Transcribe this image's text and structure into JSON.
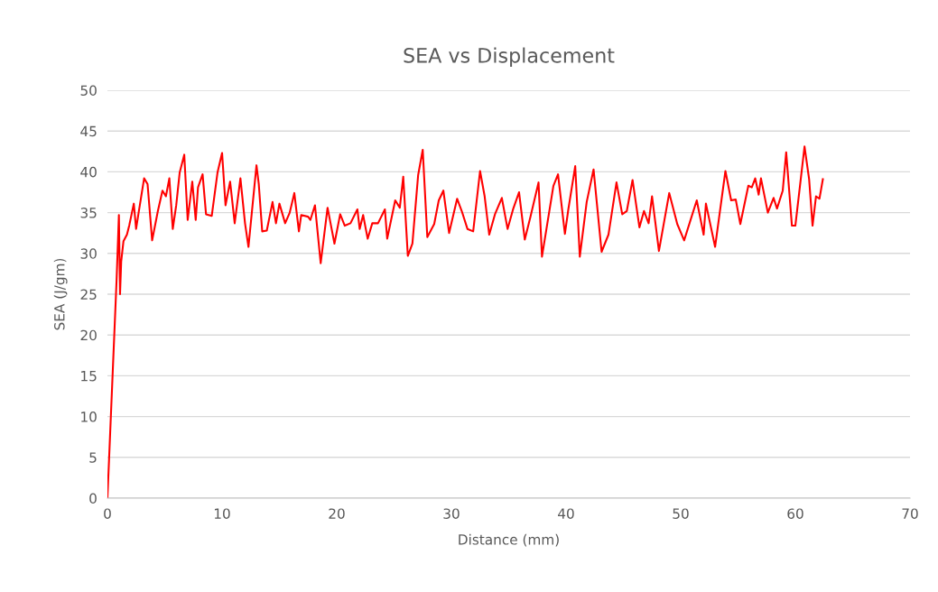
{
  "chart_data": {
    "type": "line",
    "title": "SEA vs Displacement",
    "xlabel": "Distance (mm)",
    "ylabel": "SEA (J/gm)",
    "xlim": [
      0,
      70
    ],
    "xticks": [
      0,
      10,
      20,
      30,
      40,
      50,
      60,
      70
    ],
    "ylim": [
      0,
      50
    ],
    "yticks": [
      0,
      5,
      10,
      15,
      20,
      25,
      30,
      35,
      40,
      45,
      50
    ],
    "grid": "y",
    "legend": false,
    "marker": "none",
    "line_style": "solid",
    "series": [
      {
        "color": "#ff0000",
        "x": [
          0,
          0.8,
          1.0,
          1.1,
          1.2,
          1.4,
          1.7,
          1.9,
          2.3,
          2.5,
          2.7,
          3.2,
          3.5,
          3.9,
          4.4,
          4.8,
          5.1,
          5.4,
          5.7,
          6.0,
          6.3,
          6.7,
          7.0,
          7.4,
          7.7,
          7.9,
          8.3,
          8.6,
          9.1,
          9.6,
          10.0,
          10.3,
          10.7,
          11.1,
          11.6,
          12.0,
          12.3,
          13.0,
          13.2,
          13.5,
          13.9,
          14.4,
          14.7,
          15.0,
          15.5,
          15.9,
          16.3,
          16.7,
          16.9,
          17.5,
          17.7,
          18.1,
          18.6,
          19.2,
          19.8,
          20.3,
          20.7,
          21.2,
          21.8,
          22.0,
          22.3,
          22.7,
          23.1,
          23.6,
          24.2,
          24.4,
          25.1,
          25.5,
          25.8,
          26.2,
          26.6,
          27.1,
          27.5,
          27.9,
          28.5,
          28.9,
          29.3,
          29.8,
          30.5,
          30.9,
          31.4,
          31.9,
          32.5,
          32.9,
          33.3,
          33.8,
          34.4,
          34.9,
          35.4,
          35.9,
          36.4,
          36.9,
          37.6,
          37.9,
          38.9,
          39.3,
          39.9,
          40.2,
          40.8,
          41.2,
          41.8,
          42.4,
          43.1,
          43.7,
          44.4,
          44.9,
          45.3,
          45.8,
          46.4,
          46.8,
          47.2,
          47.5,
          48.1,
          49.0,
          49.7,
          50.3,
          51.4,
          52.0,
          52.2,
          53.0,
          53.9,
          54.4,
          54.8,
          55.2,
          55.9,
          56.2,
          56.5,
          56.8,
          57.0,
          57.6,
          58.1,
          58.4,
          58.9,
          59.2,
          59.7,
          60.0,
          60.8,
          61.2,
          61.5,
          61.8,
          62.1,
          62.4
        ],
        "values": [
          0,
          26.8,
          34.7,
          25,
          29,
          31.5,
          32.3,
          33.4,
          36.1,
          33,
          34.8,
          39.2,
          38.5,
          31.6,
          35.2,
          37.7,
          37,
          39.2,
          33,
          35.9,
          39.9,
          42.1,
          34.1,
          38.8,
          34.1,
          38.1,
          39.7,
          34.8,
          34.6,
          39.9,
          42.3,
          35.9,
          38.8,
          33.7,
          39.2,
          33.7,
          30.8,
          40.8,
          38.5,
          32.7,
          32.8,
          36.3,
          33.7,
          36.1,
          33.7,
          35,
          37.4,
          32.7,
          34.7,
          34.5,
          34.1,
          35.9,
          28.8,
          35.6,
          31.2,
          34.8,
          33.4,
          33.7,
          35.4,
          33,
          34.7,
          31.8,
          33.7,
          33.7,
          35.4,
          31.8,
          36.5,
          35.6,
          39.4,
          29.7,
          31.2,
          39.6,
          42.7,
          32,
          33.6,
          36.5,
          37.7,
          32.5,
          36.7,
          35.2,
          33,
          32.7,
          40.1,
          37,
          32.3,
          34.8,
          36.8,
          33,
          35.5,
          37.5,
          31.7,
          34.5,
          38.7,
          29.6,
          38.3,
          39.7,
          32.4,
          35.4,
          40.7,
          29.6,
          36.3,
          40.3,
          30.2,
          32.3,
          38.7,
          34.8,
          35.2,
          39,
          33.2,
          35.2,
          33.7,
          37,
          30.3,
          37.4,
          33.6,
          31.6,
          36.5,
          32.3,
          36.1,
          30.8,
          40.1,
          36.5,
          36.6,
          33.6,
          38.3,
          38.1,
          39.2,
          37.2,
          39.2,
          35,
          36.8,
          35.5,
          37.7,
          42.4,
          33.4,
          33.4,
          43.1,
          39.1,
          33.4,
          37,
          36.7,
          39.1
        ]
      }
    ]
  }
}
